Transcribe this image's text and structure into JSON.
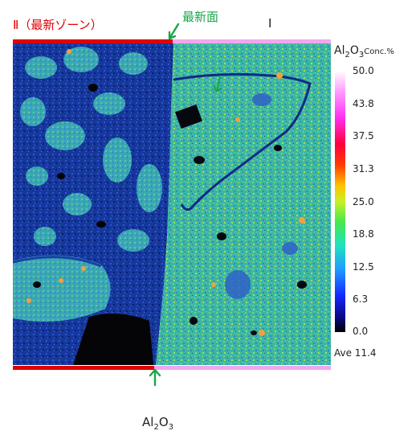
{
  "labels": {
    "zone2": "Ⅱ（最新ゾーン）",
    "newest_surface": "最新面",
    "zone1": "Ⅰ",
    "bottom": {
      "main": "Al",
      "sub1": "2",
      "mid": "O",
      "sub2": "3"
    }
  },
  "scale": {
    "title": {
      "main": "Al",
      "sub1": "2",
      "mid": "O",
      "sub2": "3",
      "unit": "Conc.%"
    },
    "ticks": [
      "50.0",
      "43.8",
      "37.5",
      "31.3",
      "25.0",
      "18.8",
      "12.5",
      "6.3",
      "0.0"
    ],
    "ave": "Ave 11.4"
  },
  "colors": {
    "zone2": "#e00000",
    "zone1": "#f0a6f0",
    "newest": "#19a64a"
  }
}
